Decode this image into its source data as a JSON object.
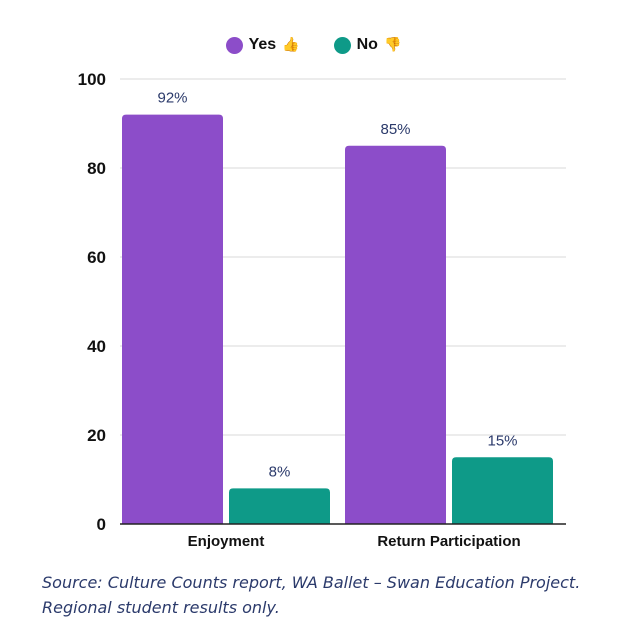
{
  "legend": {
    "yes_label": "Yes",
    "yes_icon": "thumbs-up-icon",
    "no_label": "No",
    "no_icon": "thumbs-down-icon"
  },
  "colors": {
    "yes": "#8c4dc9",
    "no": "#0e9a88",
    "grid": "#d9d9d9",
    "value_label": "#2b3a6b"
  },
  "chart_data": {
    "type": "bar",
    "categories": [
      "Enjoyment",
      "Return Participation"
    ],
    "series": [
      {
        "name": "Yes",
        "values": [
          92,
          85
        ],
        "labels": [
          "92%",
          "85%"
        ]
      },
      {
        "name": "No",
        "values": [
          8,
          15
        ],
        "labels": [
          "8%",
          "15%"
        ]
      }
    ],
    "ylim": [
      0,
      100
    ],
    "yticks": [
      0,
      20,
      40,
      60,
      80,
      100
    ],
    "grid": true,
    "legend": "top-center",
    "xlabel": "",
    "ylabel": ""
  },
  "source": {
    "line1": "Source: Culture Counts report, WA Ballet – Swan Education Project.",
    "line2": "Regional student results only."
  }
}
